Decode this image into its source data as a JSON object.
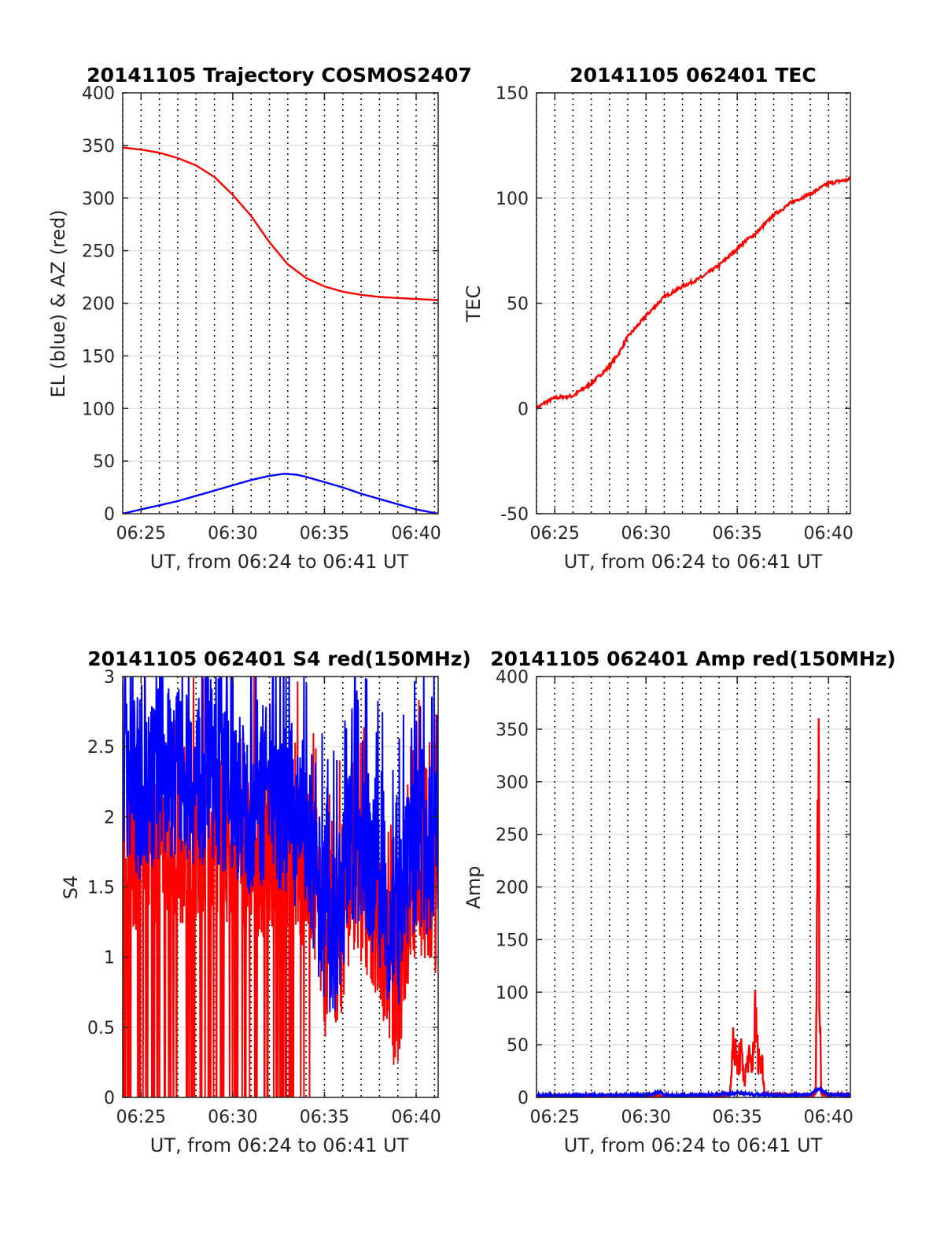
{
  "chart_data": [
    {
      "type": "line",
      "title": "20141105 Trajectory COSMOS2407",
      "xlabel": "UT, from 06:24 to 06:41 UT",
      "ylabel": "EL (blue) & AZ (red)",
      "xlim": [
        24.0,
        41.2
      ],
      "ylim": [
        0,
        400
      ],
      "xtick_values": [
        25,
        30,
        35,
        40
      ],
      "xticks": [
        "06:25",
        "06:30",
        "06:35",
        "06:40"
      ],
      "yticks": [
        0,
        50,
        100,
        150,
        200,
        250,
        300,
        350,
        400
      ],
      "grid": true,
      "series": [
        {
          "color": "#ff0000",
          "x": [
            24.0,
            25,
            26,
            27,
            28,
            29,
            30,
            31,
            32,
            33,
            34,
            35,
            36,
            37,
            38,
            39,
            40,
            41.2
          ],
          "values": [
            348,
            346,
            343,
            338,
            331,
            320,
            303,
            283,
            258,
            237,
            224,
            216,
            211,
            208,
            206,
            205,
            204,
            203
          ]
        },
        {
          "color": "#0000ff",
          "x": [
            24.0,
            25,
            26,
            27,
            28,
            29,
            30,
            31,
            32,
            32.8,
            33.5,
            34,
            35,
            36,
            37,
            38,
            39,
            40,
            41.2
          ],
          "values": [
            0,
            4,
            8,
            12,
            17,
            22,
            27,
            32,
            36,
            38,
            37,
            35,
            30,
            25,
            19,
            14,
            9,
            4,
            0
          ]
        }
      ]
    },
    {
      "type": "line",
      "title": "20141105 062401 TEC",
      "xlabel": "UT, from 06:24 to 06:41 UT",
      "ylabel": "TEC",
      "xlim": [
        24.0,
        41.2
      ],
      "ylim": [
        -50,
        150
      ],
      "xtick_values": [
        25,
        30,
        35,
        40
      ],
      "xticks": [
        "06:25",
        "06:30",
        "06:35",
        "06:40"
      ],
      "yticks": [
        -50,
        0,
        50,
        100,
        150
      ],
      "grid": true,
      "series": [
        {
          "color": "#ff0000",
          "x": [
            24.0,
            24.5,
            25,
            26,
            27,
            28,
            28.5,
            29,
            30,
            31,
            32,
            33,
            34,
            35,
            35.5,
            36,
            37,
            38,
            39,
            40,
            41.2
          ],
          "values": [
            0,
            3,
            5,
            6,
            12,
            20,
            26,
            34,
            44,
            53,
            58,
            62,
            68,
            76,
            80,
            83,
            92,
            98,
            102,
            107,
            109
          ]
        }
      ]
    },
    {
      "type": "line",
      "title": "20141105 062401 S4 red(150MHz)",
      "xlabel": "UT, from 06:24 to 06:41 UT",
      "ylabel": "S4",
      "xlim": [
        24.0,
        41.2
      ],
      "ylim": [
        0,
        3
      ],
      "xtick_values": [
        25,
        30,
        35,
        40
      ],
      "xticks": [
        "06:25",
        "06:30",
        "06:35",
        "06:40"
      ],
      "yticks": [
        0,
        0.5,
        1,
        1.5,
        2,
        2.5,
        3
      ],
      "grid": true,
      "series": [
        {
          "color": "#ff0000",
          "x": [
            24.0,
            25,
            26,
            27,
            28,
            29,
            30,
            31,
            32,
            33,
            34,
            34.5,
            35,
            35.5,
            36,
            36.5,
            37,
            37.5,
            38,
            38.5,
            39,
            39.5,
            40,
            40.5,
            41.2
          ],
          "values": [
            1.6,
            1.5,
            1.6,
            1.6,
            1.6,
            1.7,
            1.5,
            1.5,
            1.5,
            1.4,
            1.4,
            1.2,
            0.8,
            0.7,
            1.0,
            1.4,
            1.3,
            1.1,
            1.0,
            0.7,
            0.4,
            1.0,
            1.3,
            1.1,
            1.2
          ]
        },
        {
          "color": "#0000ff",
          "x": [
            24.0,
            25,
            26,
            27,
            28,
            29,
            30,
            31,
            32,
            33,
            34,
            34.5,
            35,
            35.5,
            36,
            36.5,
            37,
            37.5,
            38,
            38.5,
            39,
            39.5,
            40,
            40.5,
            41.2
          ],
          "values": [
            2.0,
            1.9,
            2.0,
            2.1,
            2.0,
            2.0,
            1.9,
            1.8,
            1.9,
            1.8,
            1.6,
            1.3,
            1.0,
            0.9,
            1.2,
            1.6,
            1.5,
            1.4,
            1.3,
            1.0,
            0.9,
            1.3,
            1.6,
            1.5,
            1.5
          ]
        }
      ]
    },
    {
      "type": "line",
      "title": "20141105 062401 Amp red(150MHz)",
      "xlabel": "UT, from 06:24 to 06:41 UT",
      "ylabel": "Amp",
      "xlim": [
        24.0,
        41.2
      ],
      "ylim": [
        0,
        400
      ],
      "xtick_values": [
        25,
        30,
        35,
        40
      ],
      "xticks": [
        "06:25",
        "06:30",
        "06:35",
        "06:40"
      ],
      "yticks": [
        0,
        50,
        100,
        150,
        200,
        250,
        300,
        350,
        400
      ],
      "grid": true,
      "series": [
        {
          "color": "#ff0000",
          "x": [
            24.0,
            30,
            34.2,
            34.6,
            34.7,
            34.8,
            35.0,
            35.2,
            35.4,
            35.6,
            35.8,
            35.9,
            36.0,
            36.1,
            36.2,
            36.4,
            36.5,
            39.0,
            39.3,
            39.4,
            39.45,
            39.5,
            39.6,
            41.2
          ],
          "values": [
            1,
            1,
            1,
            3,
            35,
            52,
            30,
            42,
            15,
            40,
            25,
            55,
            78,
            45,
            35,
            30,
            3,
            2,
            3,
            200,
            313,
            150,
            3,
            2
          ]
        },
        {
          "color": "#0000ff",
          "x": [
            24.0,
            26,
            28,
            30,
            30.8,
            31,
            32,
            34,
            35,
            36,
            37,
            38,
            39,
            39.5,
            40,
            41.2
          ],
          "values": [
            2,
            2,
            2,
            2,
            5,
            2,
            2,
            3,
            4,
            3,
            2,
            2,
            3,
            8,
            3,
            2
          ]
        }
      ]
    }
  ]
}
